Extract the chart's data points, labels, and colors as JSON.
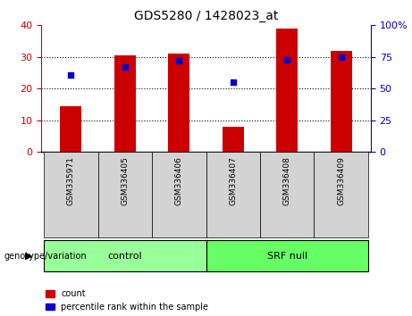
{
  "title": "GDS5280 / 1428023_at",
  "samples": [
    "GSM335971",
    "GSM336405",
    "GSM336406",
    "GSM336407",
    "GSM336408",
    "GSM336409"
  ],
  "bar_values": [
    14.5,
    30.5,
    31.0,
    8.0,
    39.0,
    32.0
  ],
  "percentile_values_left": [
    24.4,
    26.8,
    28.8,
    22.0,
    29.0,
    30.0
  ],
  "bar_color": "#cc0000",
  "dot_color": "#0000cc",
  "groups": [
    {
      "label": "control",
      "indices": [
        0,
        1,
        2
      ],
      "color": "#99ff99"
    },
    {
      "label": "SRF null",
      "indices": [
        3,
        4,
        5
      ],
      "color": "#66ff66"
    }
  ],
  "group_label": "genotype/variation",
  "ylim_left": [
    0,
    40
  ],
  "ylim_right": [
    0,
    100
  ],
  "yticks_left": [
    0,
    10,
    20,
    30,
    40
  ],
  "ytick_labels_left": [
    "0",
    "10",
    "20",
    "30",
    "40"
  ],
  "yticks_right": [
    0,
    25,
    50,
    75,
    100
  ],
  "ytick_labels_right": [
    "0",
    "25",
    "50",
    "75",
    "100%"
  ],
  "left_axis_color": "#cc0000",
  "right_axis_color": "#0000cc",
  "grid_lines_at": [
    10,
    20,
    30
  ],
  "legend_items": [
    "count",
    "percentile rank within the sample"
  ],
  "background_label": "#d3d3d3",
  "bar_width": 0.4
}
